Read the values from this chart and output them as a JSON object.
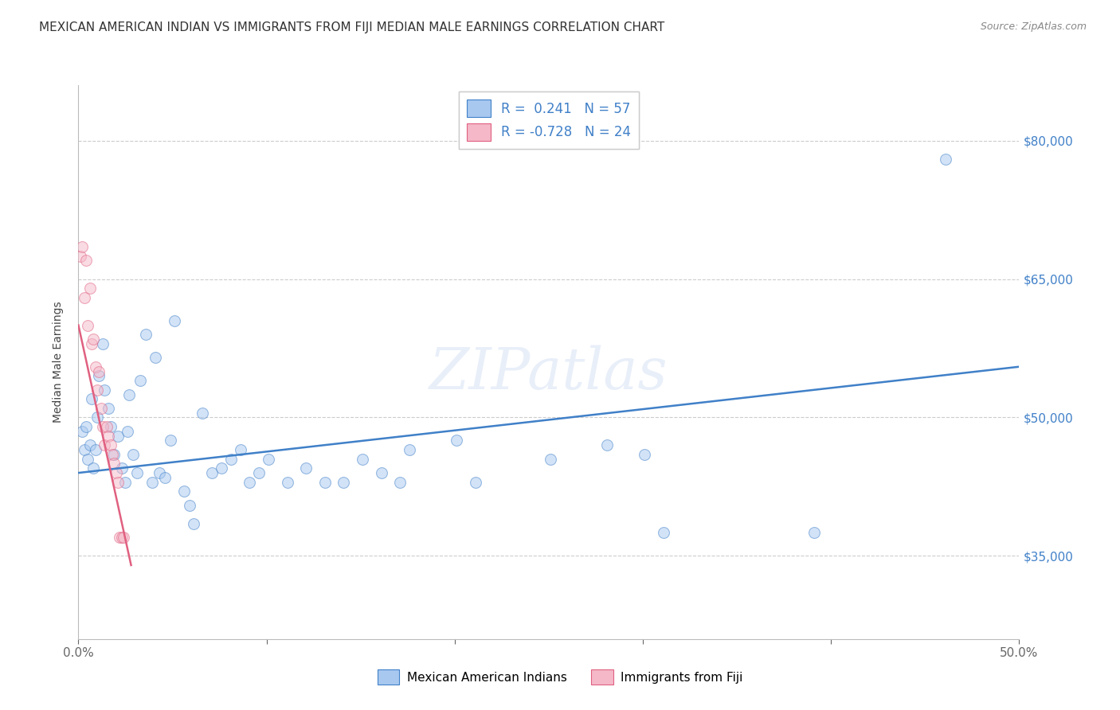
{
  "title": "MEXICAN AMERICAN INDIAN VS IMMIGRANTS FROM FIJI MEDIAN MALE EARNINGS CORRELATION CHART",
  "source": "Source: ZipAtlas.com",
  "ylabel": "Median Male Earnings",
  "xmin": 0.0,
  "xmax": 0.5,
  "ymin": 26000,
  "ymax": 86000,
  "yticks": [
    35000,
    50000,
    65000,
    80000
  ],
  "ytick_labels": [
    "$35,000",
    "$50,000",
    "$65,000",
    "$80,000"
  ],
  "watermark": "ZIPatlas",
  "legend_blue_r": "R =  0.241",
  "legend_blue_n": "N = 57",
  "legend_pink_r": "R = -0.728",
  "legend_pink_n": "N = 24",
  "legend_label_blue": "Mexican American Indians",
  "legend_label_pink": "Immigrants from Fiji",
  "blue_color": "#A8C8F0",
  "pink_color": "#F5B8C8",
  "blue_line_color": "#4080C8",
  "pink_line_color": "#E06080",
  "blue_scatter": [
    [
      0.002,
      48500
    ],
    [
      0.003,
      46500
    ],
    [
      0.004,
      49000
    ],
    [
      0.005,
      45500
    ],
    [
      0.006,
      47000
    ],
    [
      0.007,
      52000
    ],
    [
      0.008,
      44500
    ],
    [
      0.009,
      46500
    ],
    [
      0.01,
      50000
    ],
    [
      0.011,
      54500
    ],
    [
      0.013,
      58000
    ],
    [
      0.014,
      53000
    ],
    [
      0.016,
      51000
    ],
    [
      0.017,
      49000
    ],
    [
      0.019,
      46000
    ],
    [
      0.021,
      48000
    ],
    [
      0.023,
      44500
    ],
    [
      0.025,
      43000
    ],
    [
      0.026,
      48500
    ],
    [
      0.027,
      52500
    ],
    [
      0.029,
      46000
    ],
    [
      0.031,
      44000
    ],
    [
      0.033,
      54000
    ],
    [
      0.036,
      59000
    ],
    [
      0.039,
      43000
    ],
    [
      0.041,
      56500
    ],
    [
      0.043,
      44000
    ],
    [
      0.046,
      43500
    ],
    [
      0.049,
      47500
    ],
    [
      0.051,
      60500
    ],
    [
      0.056,
      42000
    ],
    [
      0.059,
      40500
    ],
    [
      0.061,
      38500
    ],
    [
      0.066,
      50500
    ],
    [
      0.071,
      44000
    ],
    [
      0.076,
      44500
    ],
    [
      0.081,
      45500
    ],
    [
      0.086,
      46500
    ],
    [
      0.091,
      43000
    ],
    [
      0.096,
      44000
    ],
    [
      0.101,
      45500
    ],
    [
      0.111,
      43000
    ],
    [
      0.121,
      44500
    ],
    [
      0.131,
      43000
    ],
    [
      0.141,
      43000
    ],
    [
      0.151,
      45500
    ],
    [
      0.161,
      44000
    ],
    [
      0.171,
      43000
    ],
    [
      0.176,
      46500
    ],
    [
      0.201,
      47500
    ],
    [
      0.211,
      43000
    ],
    [
      0.251,
      45500
    ],
    [
      0.281,
      47000
    ],
    [
      0.301,
      46000
    ],
    [
      0.311,
      37500
    ],
    [
      0.391,
      37500
    ],
    [
      0.461,
      78000
    ]
  ],
  "pink_scatter": [
    [
      0.001,
      67500
    ],
    [
      0.002,
      68500
    ],
    [
      0.003,
      63000
    ],
    [
      0.004,
      67000
    ],
    [
      0.005,
      60000
    ],
    [
      0.006,
      64000
    ],
    [
      0.007,
      58000
    ],
    [
      0.008,
      58500
    ],
    [
      0.009,
      55500
    ],
    [
      0.01,
      53000
    ],
    [
      0.011,
      55000
    ],
    [
      0.012,
      51000
    ],
    [
      0.013,
      49000
    ],
    [
      0.014,
      47000
    ],
    [
      0.015,
      49000
    ],
    [
      0.016,
      48000
    ],
    [
      0.017,
      47000
    ],
    [
      0.018,
      46000
    ],
    [
      0.019,
      45000
    ],
    [
      0.02,
      44000
    ],
    [
      0.021,
      43000
    ],
    [
      0.022,
      37000
    ],
    [
      0.023,
      37000
    ],
    [
      0.024,
      37000
    ]
  ],
  "blue_trendline": [
    [
      0.0,
      44000
    ],
    [
      0.5,
      55500
    ]
  ],
  "pink_trendline": [
    [
      0.0,
      60000
    ],
    [
      0.028,
      34000
    ]
  ],
  "title_fontsize": 11,
  "source_fontsize": 9,
  "axis_label_fontsize": 10,
  "tick_fontsize": 11,
  "scatter_size": 100,
  "scatter_alpha": 0.5,
  "line_width": 1.8
}
